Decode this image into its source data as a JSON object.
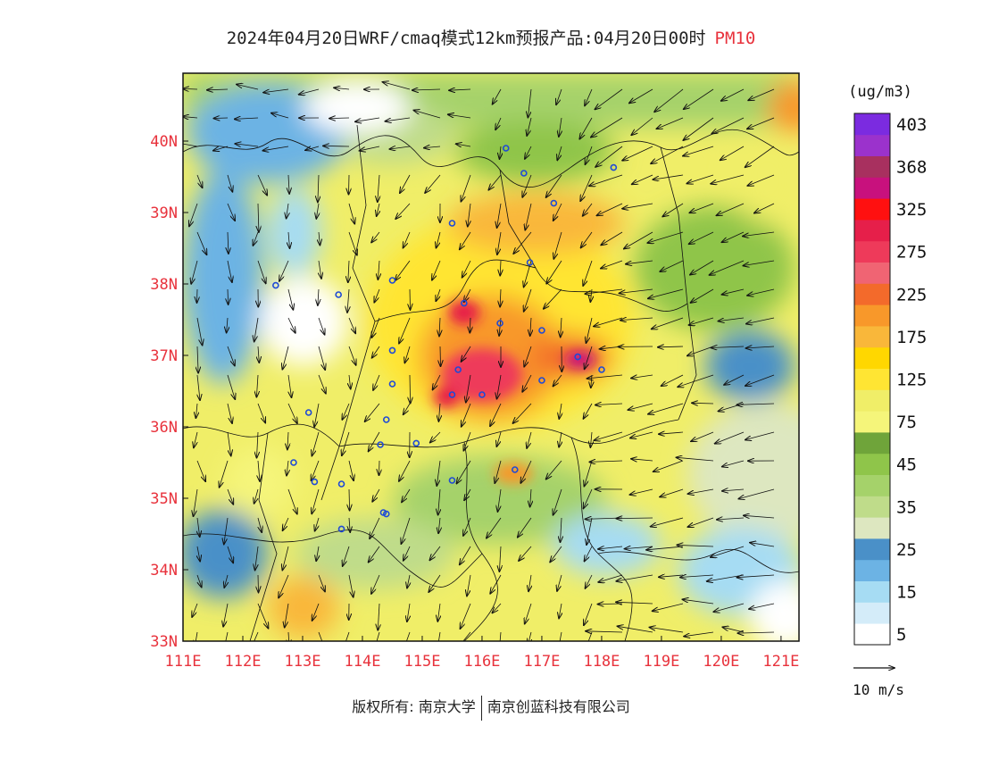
{
  "header": {
    "title": "2024年04月20日WRF/cmaq模式12km预报产品:04月20日00时",
    "pollutant": "PM10"
  },
  "map": {
    "lon_range": [
      111,
      121.3
    ],
    "lat_range": [
      33,
      40.95
    ],
    "lon_ticks": [
      "111E",
      "112E",
      "113E",
      "114E",
      "115E",
      "116E",
      "117E",
      "118E",
      "119E",
      "120E",
      "121E"
    ],
    "lat_ticks": [
      "33N",
      "34N",
      "35N",
      "36N",
      "37N",
      "38N",
      "39N",
      "40N"
    ],
    "tick_color": "#e8323c",
    "hotspots": [
      {
        "lon": 116.2,
        "lat": 36.9,
        "level": "225-275"
      },
      {
        "lon": 117.5,
        "lat": 37.0,
        "level": "325-368"
      },
      {
        "lon": 116.3,
        "lat": 37.5,
        "level": "175-225"
      },
      {
        "lon": 116.5,
        "lat": 39.0,
        "level": "125-175"
      }
    ],
    "city_markers": [
      [
        116.4,
        39.9
      ],
      [
        118.2,
        39.63
      ],
      [
        116.7,
        39.55
      ],
      [
        117.2,
        39.13
      ],
      [
        115.5,
        38.85
      ],
      [
        116.8,
        38.3
      ],
      [
        114.5,
        38.05
      ],
      [
        112.55,
        37.98
      ],
      [
        113.6,
        37.85
      ],
      [
        115.7,
        37.73
      ],
      [
        116.3,
        37.45
      ],
      [
        117.0,
        37.35
      ],
      [
        114.5,
        37.07
      ],
      [
        117.6,
        36.98
      ],
      [
        118.0,
        36.8
      ],
      [
        115.6,
        36.8
      ],
      [
        114.5,
        36.6
      ],
      [
        117.0,
        36.65
      ],
      [
        115.5,
        36.45
      ],
      [
        116.0,
        36.45
      ],
      [
        113.1,
        36.2
      ],
      [
        114.4,
        36.1
      ],
      [
        114.3,
        35.75
      ],
      [
        114.9,
        35.77
      ],
      [
        112.85,
        35.5
      ],
      [
        116.55,
        35.4
      ],
      [
        115.5,
        35.25
      ],
      [
        113.65,
        35.2
      ],
      [
        114.35,
        34.8
      ],
      [
        113.2,
        35.23
      ],
      [
        113.65,
        34.57
      ],
      [
        114.4,
        34.78
      ]
    ]
  },
  "legend": {
    "unit_label": "(ug/m3)",
    "colors": [
      "#ffffff",
      "#d4ecf9",
      "#a6dcf3",
      "#6cb3e4",
      "#4a90c8",
      "#dde7c0",
      "#bfdc8a",
      "#a5d26a",
      "#8fc54a",
      "#6fa43a",
      "#f5f57a",
      "#f0ee68",
      "#ffe533",
      "#ffd700",
      "#f9b73a",
      "#f8982a",
      "#f36a2b",
      "#f06473",
      "#ee3a5a",
      "#e61f4a",
      "#ff1010",
      "#c8117d",
      "#a8305f",
      "#9b32cc",
      "#7b2be0"
    ],
    "labels": [
      {
        "text": "5",
        "index": 0
      },
      {
        "text": "15",
        "index": 2
      },
      {
        "text": "25",
        "index": 4
      },
      {
        "text": "35",
        "index": 6
      },
      {
        "text": "45",
        "index": 8
      },
      {
        "text": "75",
        "index": 10
      },
      {
        "text": "125",
        "index": 12
      },
      {
        "text": "175",
        "index": 14
      },
      {
        "text": "225",
        "index": 16
      },
      {
        "text": "275",
        "index": 18
      },
      {
        "text": "325",
        "index": 20
      },
      {
        "text": "368",
        "index": 22
      },
      {
        "text": "403",
        "index": 24
      }
    ],
    "wind_scale_label": "10 m/s"
  },
  "footer": {
    "copyright_label": "版权所有: 南京大学",
    "company": "南京创蓝科技有限公司"
  }
}
